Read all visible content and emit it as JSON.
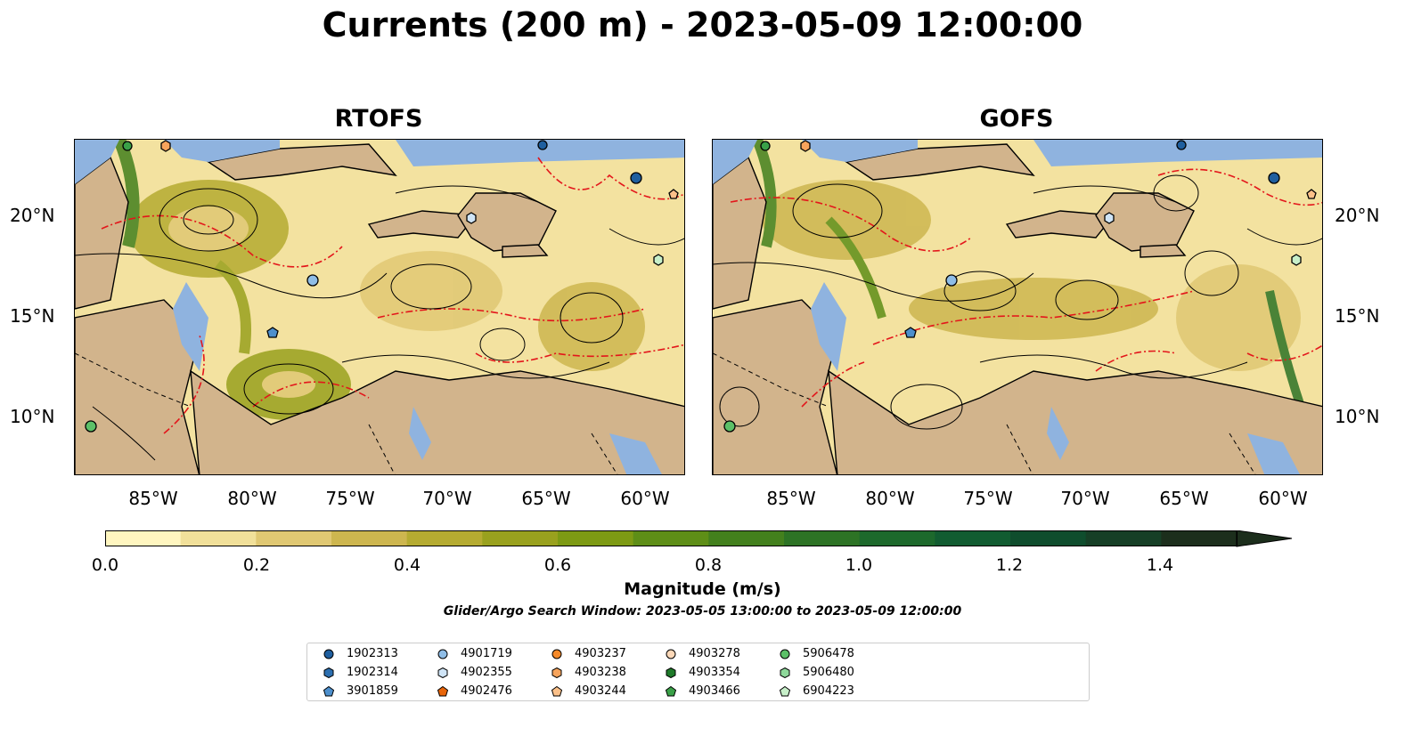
{
  "title": "Currents (200 m) - 2023-05-09 12:00:00",
  "panels": [
    {
      "name": "RTOFS"
    },
    {
      "name": "GOFS"
    }
  ],
  "axes": {
    "y_ticks": [
      "20°N",
      "15°N",
      "10°N"
    ],
    "x_ticks": [
      "85°W",
      "80°W",
      "75°W",
      "70°W",
      "65°W",
      "60°W"
    ]
  },
  "colorbar": {
    "label": "Magnitude (m/s)",
    "ticks": [
      "0.0",
      "0.2",
      "0.4",
      "0.6",
      "0.8",
      "1.0",
      "1.2",
      "1.4"
    ],
    "range": [
      0,
      1.5
    ],
    "extend": "max",
    "colors": [
      "#fff6c0",
      "#f1e09a",
      "#e0c873",
      "#cdb64f",
      "#b5ab31",
      "#99a11e",
      "#7d9a14",
      "#5e8e17",
      "#43801d",
      "#2d7325",
      "#1d692c",
      "#125c31",
      "#0f4d2d",
      "#163f26",
      "#1c2e1c"
    ]
  },
  "search_window": "Glider/Argo Search Window: 2023-05-05 13:00:00 to 2023-05-09 12:00:00",
  "legend": [
    {
      "id": "1902313",
      "marker": "circle",
      "color": "#1f5f9f"
    },
    {
      "id": "1902314",
      "marker": "hexagon",
      "color": "#2c6fb0"
    },
    {
      "id": "3901859",
      "marker": "pentagon",
      "color": "#4d8fcc"
    },
    {
      "id": "4901719",
      "marker": "circle",
      "color": "#8fbde6"
    },
    {
      "id": "4902355",
      "marker": "hexagon",
      "color": "#cfe4f6"
    },
    {
      "id": "4902476",
      "marker": "pentagon",
      "color": "#e8650a"
    },
    {
      "id": "4903237",
      "marker": "circle",
      "color": "#f58a2a"
    },
    {
      "id": "4903238",
      "marker": "hexagon",
      "color": "#f7a45c"
    },
    {
      "id": "4903244",
      "marker": "pentagon",
      "color": "#fbc089"
    },
    {
      "id": "4903278",
      "marker": "circle",
      "color": "#fcd8b8"
    },
    {
      "id": "4903354",
      "marker": "hexagon",
      "color": "#1f7a2a"
    },
    {
      "id": "4903466",
      "marker": "pentagon",
      "color": "#3aa048"
    },
    {
      "id": "5906478",
      "marker": "circle",
      "color": "#5cc068"
    },
    {
      "id": "5906480",
      "marker": "hexagon",
      "color": "#8ed89a"
    },
    {
      "id": "6904223",
      "marker": "pentagon",
      "color": "#c7efc9"
    }
  ],
  "map_colors": {
    "land": "#d2b48c",
    "shallow": "#8fb3df",
    "fronts": "#e3161b",
    "streamlines": "#000000"
  }
}
